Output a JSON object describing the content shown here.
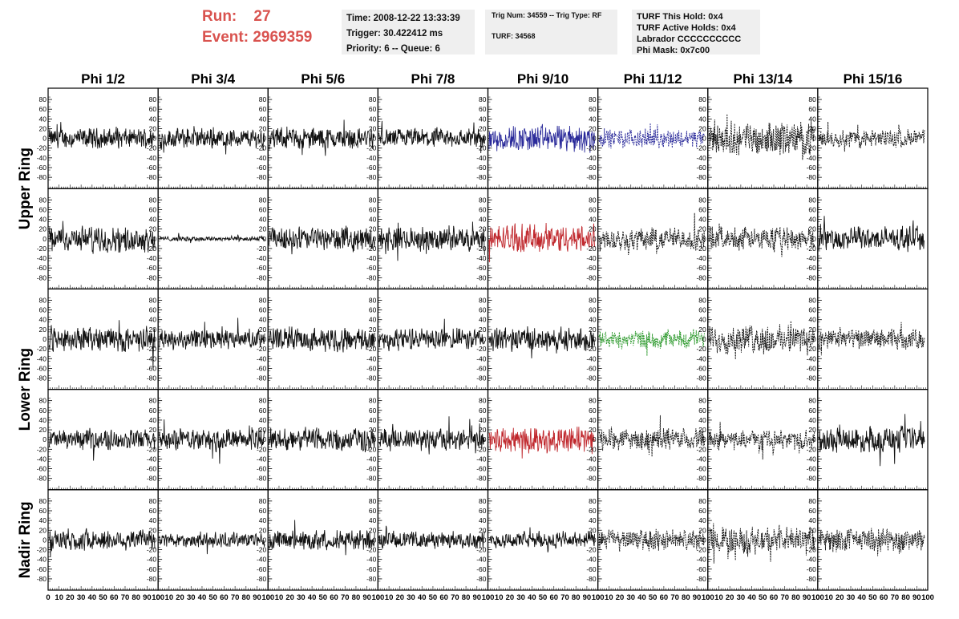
{
  "header": {
    "run_label": "Run:",
    "run_value": "27",
    "event_label": "Event:",
    "event_value": "2969359",
    "time": "Time: 2008-12-22 13:33:39",
    "trigger": "Trigger: 30.422412 ms",
    "priority": "Priority: 6 -- Queue: 6",
    "trig_num": "Trig Num: 34559 -- Trig Type: RF",
    "turf": "TURF: 34568",
    "turf_this_hold": "TURF This Hold: 0x4",
    "turf_active_holds": "TURF Active Holds: 0x4",
    "labrador": "Labrador CCCCCCCCCC",
    "phi_mask": "Phi Mask: 0x7c00"
  },
  "chart_data": {
    "type": "line",
    "columns": [
      "Phi 1/2",
      "Phi 3/4",
      "Phi 5/6",
      "Phi 7/8",
      "Phi 9/10",
      "Phi 11/12",
      "Phi 13/14",
      "Phi 15/16"
    ],
    "row_groups": [
      {
        "label": "Upper Ring",
        "rows": [
          0,
          1
        ]
      },
      {
        "label": "Lower Ring",
        "rows": [
          2,
          3
        ]
      },
      {
        "label": "Nadir Ring",
        "rows": [
          4
        ]
      }
    ],
    "ylim": [
      -90,
      90
    ],
    "yticks": [
      -80,
      -60,
      -40,
      -20,
      0,
      20,
      40,
      60,
      80
    ],
    "ytick_labels": [
      "-80",
      "-60",
      "-40",
      "-20",
      "0",
      "20",
      "40",
      "60",
      "80"
    ],
    "xlim": [
      0,
      100
    ],
    "xticks": [
      0,
      10,
      20,
      30,
      40,
      50,
      60,
      70,
      80,
      90,
      100
    ],
    "xtick_labels": [
      "0",
      "10",
      "20",
      "30",
      "40",
      "50",
      "60",
      "70",
      "80",
      "90",
      "100"
    ],
    "samples_per_trace": 256,
    "colors": {
      "blue": "#2a2a9a",
      "red": "#c0282d",
      "green": "#2e9a2e",
      "black": "#111111"
    },
    "traces": [
      [
        {
          "a": 12,
          "c": "black",
          "d": false
        },
        {
          "a": 12,
          "c": "black",
          "d": false
        },
        {
          "a": 13,
          "c": "black",
          "d": false
        },
        {
          "a": 12,
          "c": "black",
          "d": false
        },
        {
          "a": 16,
          "c": "blue",
          "d": false
        },
        {
          "a": 11,
          "c": "blue",
          "d": true
        },
        {
          "a": 20,
          "c": "black",
          "d": true
        },
        {
          "a": 11,
          "c": "black",
          "d": true
        }
      ],
      [
        {
          "a": 15,
          "c": "black",
          "d": false
        },
        {
          "a": 3,
          "c": "black",
          "d": false
        },
        {
          "a": 14,
          "c": "black",
          "d": false
        },
        {
          "a": 14,
          "c": "black",
          "d": false
        },
        {
          "a": 17,
          "c": "red",
          "d": false
        },
        {
          "a": 14,
          "c": "black",
          "d": true
        },
        {
          "a": 14,
          "c": "black",
          "d": true
        },
        {
          "a": 14,
          "c": "black",
          "d": false
        }
      ],
      [
        {
          "a": 15,
          "c": "black",
          "d": false
        },
        {
          "a": 12,
          "c": "black",
          "d": false
        },
        {
          "a": 14,
          "c": "black",
          "d": false
        },
        {
          "a": 13,
          "c": "black",
          "d": false
        },
        {
          "a": 14,
          "c": "black",
          "d": false
        },
        {
          "a": 11,
          "c": "green",
          "d": true
        },
        {
          "a": 17,
          "c": "black",
          "d": true
        },
        {
          "a": 12,
          "c": "black",
          "d": true
        }
      ],
      [
        {
          "a": 12,
          "c": "black",
          "d": false
        },
        {
          "a": 13,
          "c": "black",
          "d": false
        },
        {
          "a": 14,
          "c": "black",
          "d": false
        },
        {
          "a": 13,
          "c": "black",
          "d": false
        },
        {
          "a": 16,
          "c": "red",
          "d": false
        },
        {
          "a": 13,
          "c": "black",
          "d": true
        },
        {
          "a": 11,
          "c": "black",
          "d": true
        },
        {
          "a": 15,
          "c": "black",
          "d": false
        }
      ],
      [
        {
          "a": 13,
          "c": "black",
          "d": false
        },
        {
          "a": 9,
          "c": "black",
          "d": false
        },
        {
          "a": 12,
          "c": "black",
          "d": false
        },
        {
          "a": 10,
          "c": "black",
          "d": false
        },
        {
          "a": 10,
          "c": "black",
          "d": false
        },
        {
          "a": 13,
          "c": "black",
          "d": true
        },
        {
          "a": 16,
          "c": "black",
          "d": true
        },
        {
          "a": 14,
          "c": "black",
          "d": true
        }
      ]
    ]
  }
}
